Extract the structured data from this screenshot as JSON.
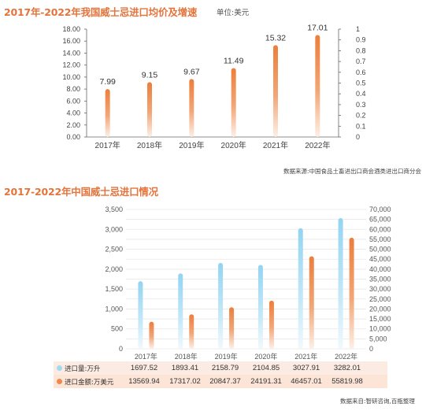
{
  "chart_data": [
    {
      "type": "bar",
      "title": "2017年-2022年我国威士忌进口均价及增速",
      "unit_label": "单位:美元",
      "source": "数据来源:中国食品土畜进出口商会酒类进出口商分会",
      "categories": [
        "2017年",
        "2018年",
        "2019年",
        "2020年",
        "2021年",
        "2022年"
      ],
      "values": [
        7.99,
        9.15,
        9.67,
        11.49,
        15.32,
        17.01
      ],
      "value_labels": [
        "7.99",
        "9.15",
        "9.67",
        "11.49",
        "15.32",
        "17.01"
      ],
      "ylim": [
        0,
        18
      ],
      "yticks": [
        "0.00",
        "2.00",
        "4.00",
        "6.00",
        "8.00",
        "10.00",
        "12.00",
        "14.00",
        "16.00",
        "18.00"
      ],
      "y2lim": [
        0,
        1
      ],
      "y2ticks": [
        "0",
        "0.1",
        "0.2",
        "0.3",
        "0.4",
        "0.5",
        "0.6",
        "0.7",
        "0.8",
        "0.9",
        "1"
      ],
      "bar_color": "#ec8a4e"
    },
    {
      "type": "bar",
      "title": "2017-2022年中国威士忌进口情况",
      "source": "数据来自:智研咨询,百瓶整理",
      "categories": [
        "2017年",
        "2018年",
        "2019年",
        "2020年",
        "2021年",
        "2022年"
      ],
      "series": [
        {
          "name": "进口量:万升",
          "axis": "left",
          "color": "#9fd9f2",
          "values": [
            1697.52,
            1893.41,
            2158.79,
            2104.85,
            3027.91,
            3282.01
          ],
          "labels": [
            "1697.52",
            "1893.41",
            "2158.79",
            "2104.85",
            "3027.91",
            "3282.01"
          ]
        },
        {
          "name": "进口金额:万美元",
          "axis": "right",
          "color": "#ec8a4e",
          "values": [
            13569.94,
            17317.02,
            20847.37,
            24191.31,
            46457.01,
            55819.98
          ],
          "labels": [
            "13569.94",
            "17317.02",
            "20847.37",
            "24191.31",
            "46457.01",
            "55819.98"
          ]
        }
      ],
      "ylim": [
        0,
        3500
      ],
      "yticks": [
        "0",
        "500",
        "1,000",
        "1,500",
        "2,000",
        "2,500",
        "3,000",
        "3,500"
      ],
      "y2lim": [
        0,
        70000
      ],
      "y2ticks": [
        "0",
        "5,000",
        "10,000",
        "15,000",
        "20,000",
        "25,000",
        "30,000",
        "35,000",
        "40,000",
        "45,000",
        "50,000",
        "55,000",
        "60,000",
        "65,000",
        "70,000"
      ],
      "grid": true
    }
  ]
}
